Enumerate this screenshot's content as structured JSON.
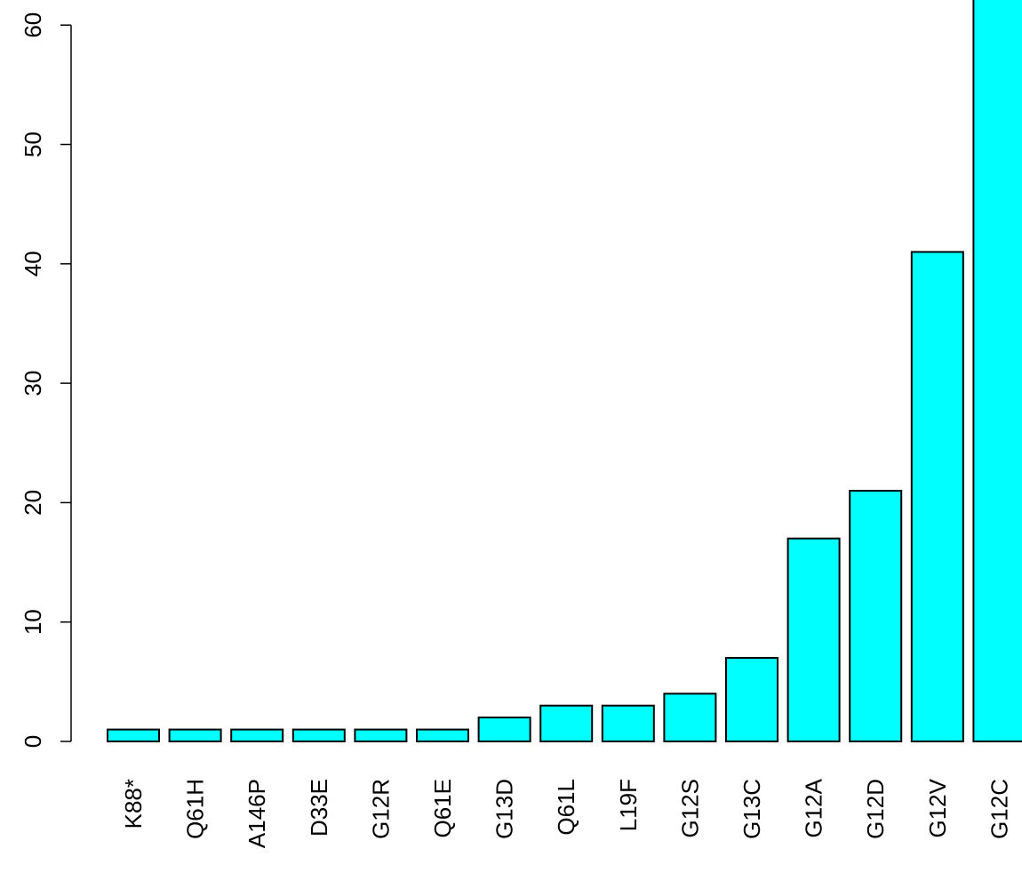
{
  "chart_data": {
    "type": "bar",
    "categories": [
      "K88*",
      "Q61H",
      "A146P",
      "D33E",
      "G12R",
      "Q61E",
      "G13D",
      "Q61L",
      "L19F",
      "G12S",
      "G13C",
      "G12A",
      "G12D",
      "G12V",
      "G12C"
    ],
    "values": [
      1,
      1,
      1,
      1,
      1,
      1,
      2,
      3,
      3,
      4,
      7,
      17,
      21,
      41,
      63
    ],
    "yticks": [
      0,
      10,
      20,
      30,
      40,
      50,
      60
    ],
    "ylim": [
      0,
      63
    ],
    "title": "",
    "xlabel": "",
    "ylabel": "",
    "bar_color": "#00FFFF",
    "bar_stroke": "#000000",
    "grid": false,
    "x_labels_rotated": true
  }
}
